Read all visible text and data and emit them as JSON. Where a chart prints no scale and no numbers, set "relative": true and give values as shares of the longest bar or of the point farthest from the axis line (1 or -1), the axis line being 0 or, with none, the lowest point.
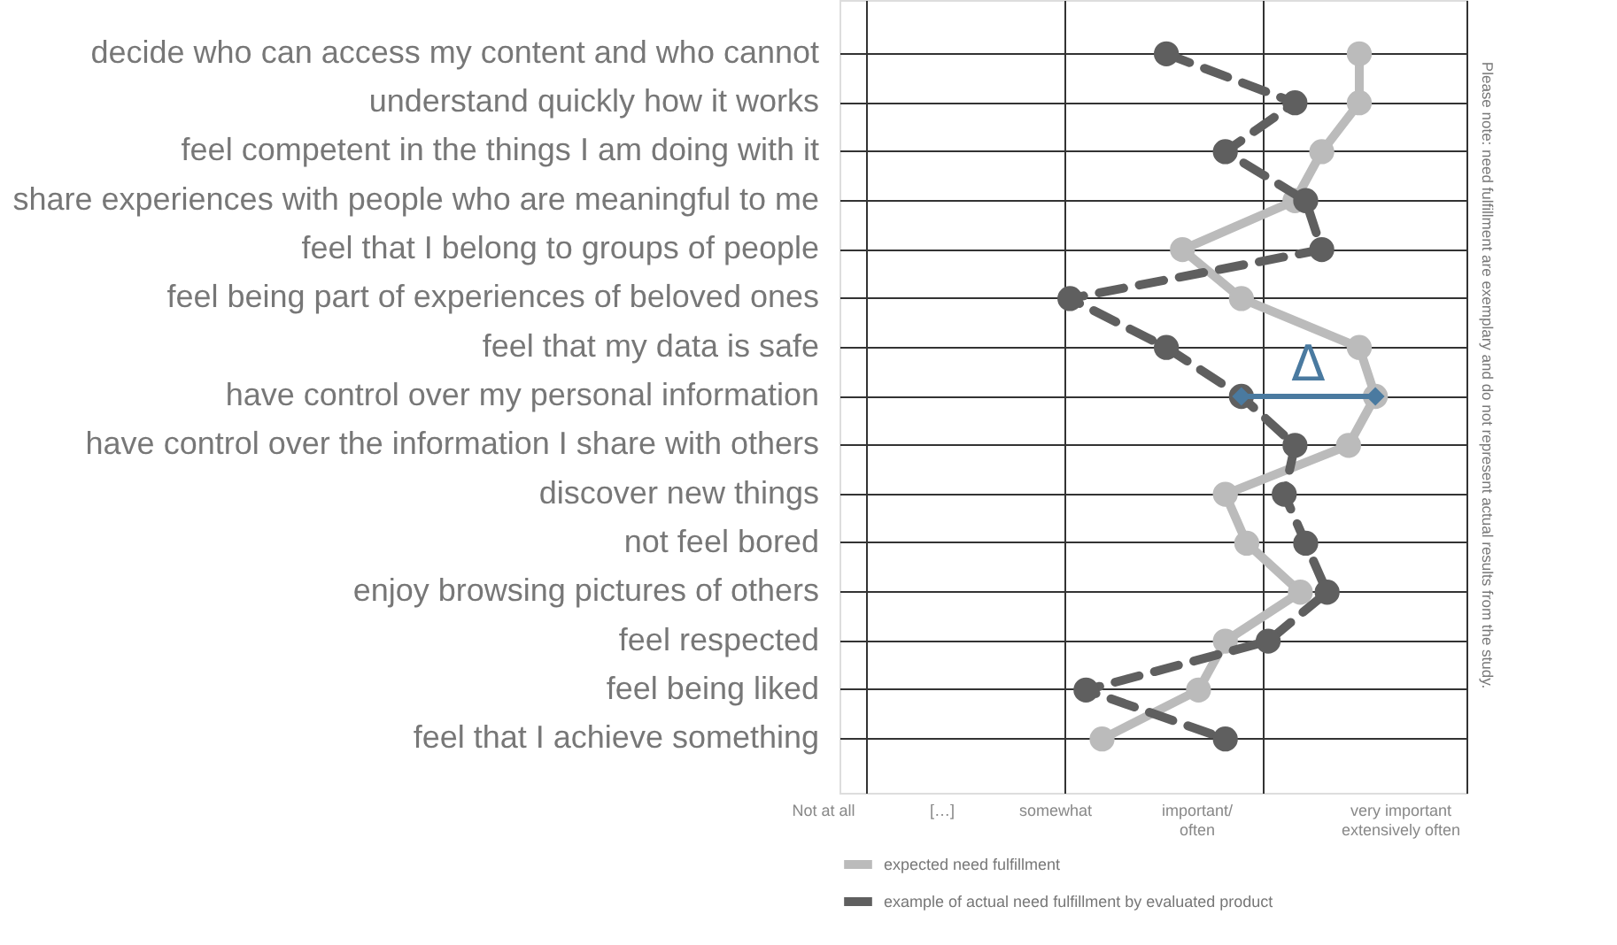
{
  "chart_data": {
    "type": "line",
    "orientation": "horizontal",
    "relative": true,
    "categories": [
      "decide who can access my content and who cannot",
      "understand quickly how it works",
      "feel competent in the things I am doing with it",
      "share experiences with people who are meaningful to me",
      "feel that I belong to groups of people",
      "feel being part of experiences of beloved ones",
      "feel that my data is safe",
      "have control over my personal information",
      "have control over the information I share with others",
      "discover new things",
      "not feel bored",
      "enjoy browsing pictures of others",
      "feel respected",
      "feel being liked",
      "feel that I achieve something"
    ],
    "series": [
      {
        "name": "expected need fulfillment",
        "color": "#bbbbbb",
        "line_style": "solid",
        "values": [
          0.97,
          0.97,
          0.9,
          0.85,
          0.64,
          0.75,
          0.97,
          1.0,
          0.95,
          0.72,
          0.76,
          0.86,
          0.72,
          0.67,
          0.49
        ]
      },
      {
        "name": "example of actual need fulfillment by evaluated product",
        "color": "#5f5f5f",
        "line_style": "dashed",
        "values": [
          0.61,
          0.85,
          0.72,
          0.87,
          0.9,
          0.43,
          0.61,
          0.75,
          0.85,
          0.83,
          0.87,
          0.91,
          0.8,
          0.46,
          0.72
        ]
      }
    ],
    "grid": true,
    "legend": "bottom",
    "marker": "circle",
    "annotations": [
      "Δ",
      "Not at all",
      "[…]",
      "somewhat",
      "important/\noften",
      "very important\nextensively often",
      "Please note: need fulfillment are exemplary and do not represent actual results from the study."
    ]
  }
}
